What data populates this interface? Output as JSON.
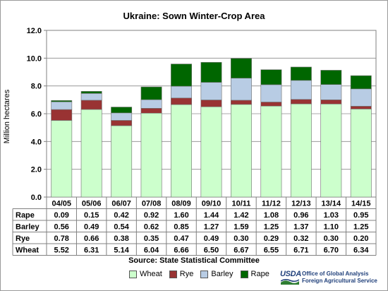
{
  "chart_data": {
    "type": "bar",
    "stacked": true,
    "title": "Ukraine:  Sown Winter-Crop Area",
    "ylabel": "Million hectares",
    "ylim": [
      0,
      12
    ],
    "yticks": [
      "0.0",
      "2.0",
      "4.0",
      "6.0",
      "8.0",
      "10.0",
      "12.0"
    ],
    "grid": true,
    "categories": [
      "04/05",
      "05/06",
      "06/07",
      "07/08",
      "08/09",
      "09/10",
      "10/11",
      "11/12",
      "12/13",
      "13/14",
      "14/15"
    ],
    "series": [
      {
        "name": "Wheat",
        "color": "#ccffcc",
        "values": [
          5.52,
          6.31,
          5.14,
          6.04,
          6.66,
          6.5,
          6.67,
          6.55,
          6.71,
          6.7,
          6.34
        ],
        "labels": [
          "5.52",
          "6.31",
          "5.14",
          "6.04",
          "6.66",
          "6.50",
          "6.67",
          "6.55",
          "6.71",
          "6.70",
          "6.34"
        ]
      },
      {
        "name": "Rye",
        "color": "#993333",
        "values": [
          0.78,
          0.66,
          0.38,
          0.35,
          0.47,
          0.49,
          0.3,
          0.29,
          0.32,
          0.3,
          0.2
        ],
        "labels": [
          "0.78",
          "0.66",
          "0.38",
          "0.35",
          "0.47",
          "0.49",
          "0.30",
          "0.29",
          "0.32",
          "0.30",
          "0.20"
        ]
      },
      {
        "name": "Barley",
        "color": "#b8cce4",
        "values": [
          0.56,
          0.49,
          0.54,
          0.62,
          0.85,
          1.27,
          1.59,
          1.25,
          1.37,
          1.1,
          1.25
        ],
        "labels": [
          "0.56",
          "0.49",
          "0.54",
          "0.62",
          "0.85",
          "1.27",
          "1.59",
          "1.25",
          "1.37",
          "1.10",
          "1.25"
        ]
      },
      {
        "name": "Rape",
        "color": "#006600",
        "values": [
          0.09,
          0.15,
          0.42,
          0.92,
          1.6,
          1.44,
          1.42,
          1.08,
          0.96,
          1.03,
          0.95
        ],
        "labels": [
          "0.09",
          "0.15",
          "0.42",
          "0.92",
          "1.60",
          "1.44",
          "1.42",
          "1.08",
          "0.96",
          "1.03",
          "0.95"
        ]
      }
    ],
    "table_row_order": [
      "Rape",
      "Barley",
      "Rye",
      "Wheat"
    ],
    "legend": "bottom",
    "source": "Source:  State Statistical Committee"
  },
  "logo": {
    "mark": "USDA",
    "line1": "Office of Global Analysis",
    "line2": "Foreign Agricultural Service"
  }
}
